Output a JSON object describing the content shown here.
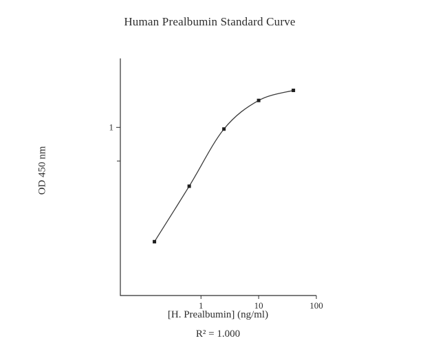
{
  "page": {
    "background": "#ffffff",
    "text_color": "#2d2d2d"
  },
  "chart_data": {
    "type": "line",
    "title": "Human Prealbumin Standard Curve",
    "xlabel": "[H. Prealbumin] (ng/ml)",
    "ylabel": "OD 450 nm",
    "annotation": "R² = 1.000",
    "x_scale": "log",
    "y_scale": "linear",
    "x": [
      0.156,
      0.625,
      2.5,
      10,
      40
    ],
    "y": [
      0.32,
      0.65,
      0.99,
      1.16,
      1.22
    ],
    "xlim": [
      0.04,
      100
    ],
    "ylim": [
      0,
      1.41
    ],
    "x_ticks": [
      1,
      10,
      100
    ],
    "y_ticks": [
      1
    ],
    "y_minor_ticks": [
      0.8
    ],
    "marker": "square",
    "line_color": "#3a3a3a",
    "marker_color": "#1f1f1f",
    "axis_color": "#2d2d2d",
    "grid": false,
    "legend": false
  }
}
